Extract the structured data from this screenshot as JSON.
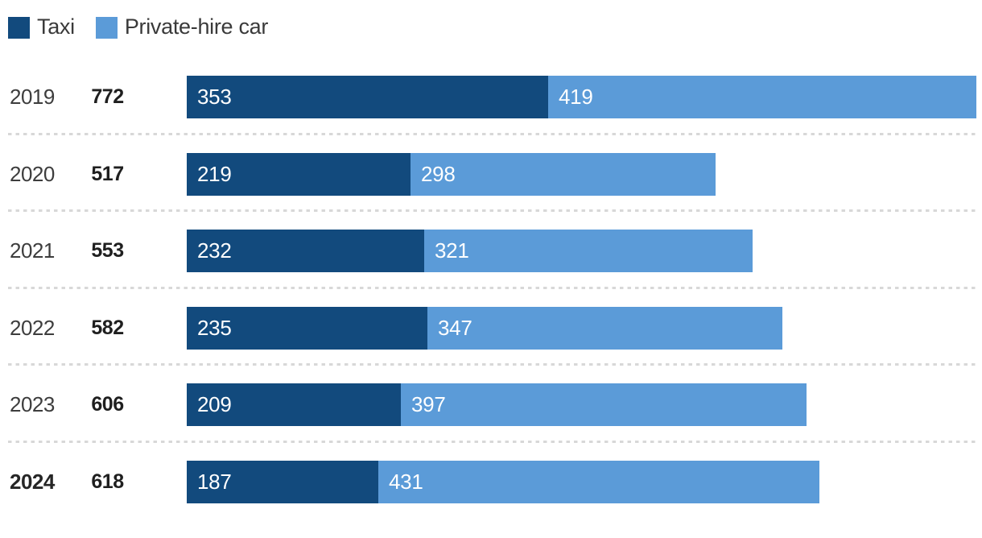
{
  "legend": {
    "items": [
      {
        "label": "Taxi",
        "color": "#124a7d"
      },
      {
        "label": "Private-hire car",
        "color": "#5b9bd8"
      }
    ]
  },
  "chart_data": {
    "type": "bar",
    "orientation": "horizontal",
    "stacked": true,
    "categories": [
      "2019",
      "2020",
      "2021",
      "2022",
      "2023",
      "2024"
    ],
    "series": [
      {
        "name": "Taxi",
        "color": "#124a7d",
        "values": [
          353,
          219,
          232,
          235,
          209,
          187
        ]
      },
      {
        "name": "Private-hire car",
        "color": "#5b9bd8",
        "values": [
          419,
          298,
          321,
          347,
          397,
          431
        ]
      }
    ],
    "totals": [
      772,
      517,
      553,
      582,
      606,
      618
    ],
    "max_total": 772,
    "highlighted_category": "2024",
    "value_labels_inside_bars": true,
    "separator_style": "dotted",
    "legend_position": "top-left"
  }
}
